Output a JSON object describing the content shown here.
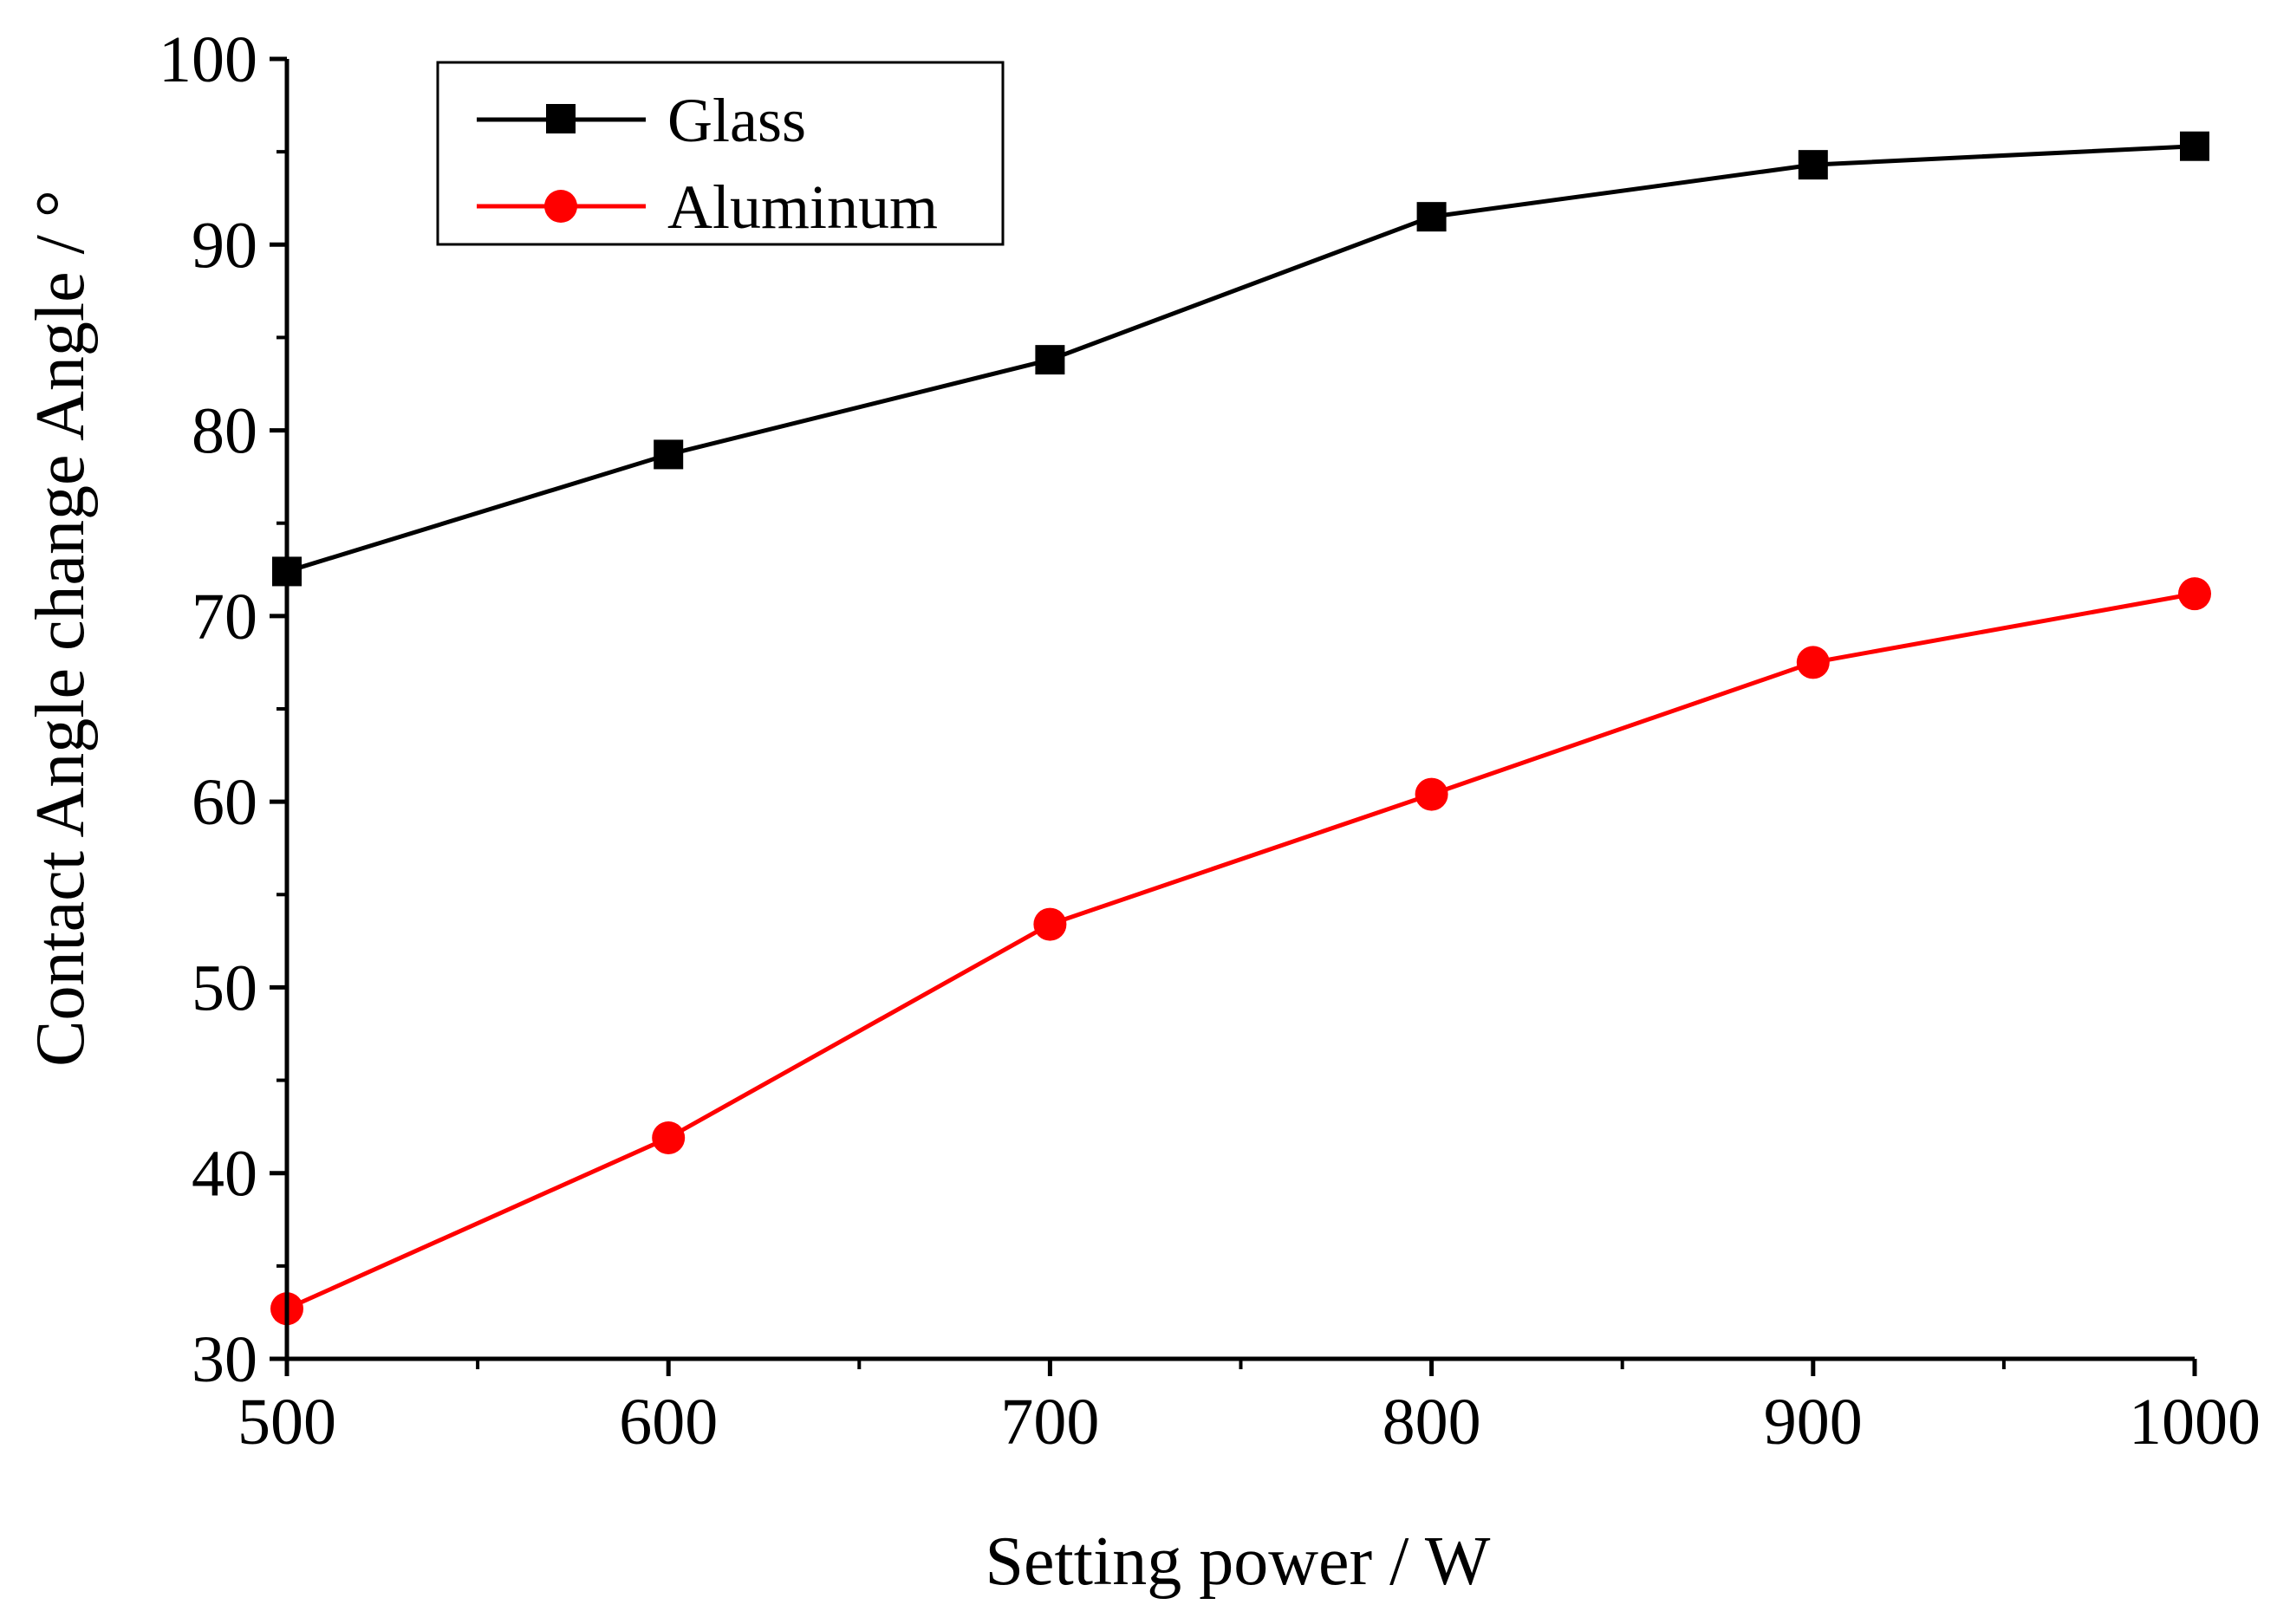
{
  "chart_data": {
    "type": "line",
    "title": "",
    "xlabel": "Setting power / W",
    "ylabel": "Contact Angle change Angle / °",
    "xlim": [
      500,
      1000
    ],
    "ylim": [
      30,
      100
    ],
    "xticks": [
      500,
      600,
      700,
      800,
      900,
      1000
    ],
    "xminor": [
      550,
      650,
      750,
      850,
      950
    ],
    "yticks": [
      30,
      40,
      50,
      60,
      70,
      80,
      90,
      100
    ],
    "yminor": [
      35,
      45,
      55,
      65,
      75,
      85,
      95
    ],
    "x": [
      500,
      600,
      700,
      800,
      900,
      1000
    ],
    "series": [
      {
        "name": "Glass",
        "values": [
          72.4,
          78.7,
          83.8,
          91.5,
          94.3,
          95.3
        ],
        "color": "#000000",
        "marker": "square"
      },
      {
        "name": "Aluminum",
        "values": [
          32.7,
          41.9,
          53.4,
          60.4,
          67.5,
          71.2
        ],
        "color": "#ff0000",
        "marker": "circle"
      }
    ],
    "legend": {
      "position": "top-left",
      "entries": [
        "Glass",
        "Aluminum"
      ]
    },
    "grid": false
  }
}
